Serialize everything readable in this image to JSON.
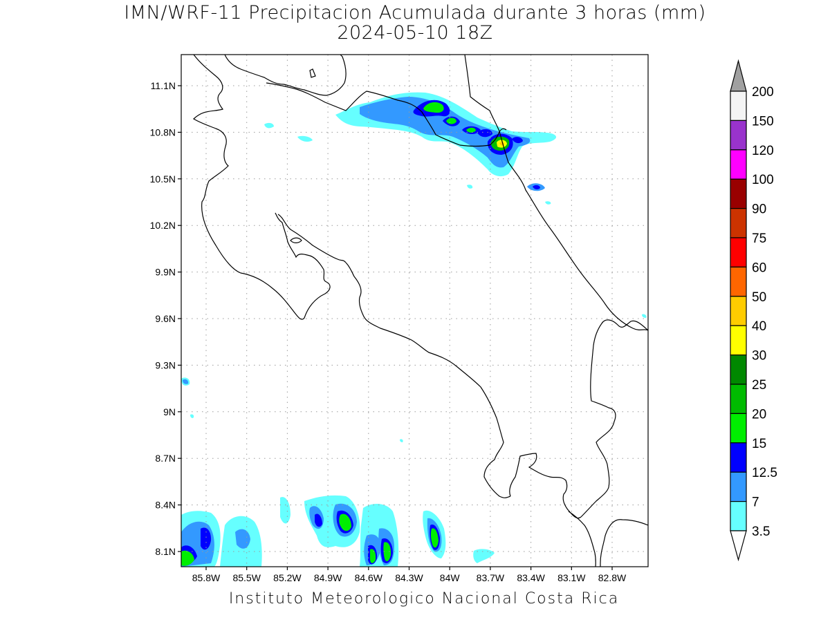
{
  "title": {
    "line1": "IMN/WRF-11 Precipitacion Acumulada durante 3 horas (mm)",
    "line2": "2024-05-10 18Z"
  },
  "footer": "Instituto Meteorologico Nacional Costa Rica",
  "axes": {
    "lat_ticks": [
      "11.1N",
      "10.8N",
      "10.5N",
      "10.2N",
      "9.9N",
      "9.6N",
      "9.3N",
      "9N",
      "8.7N",
      "8.4N",
      "8.1N"
    ],
    "lon_ticks": [
      "85.8W",
      "85.5W",
      "85.2W",
      "84.9W",
      "84.6W",
      "84.3W",
      "84W",
      "83.7W",
      "83.4W",
      "83.1W",
      "82.8W"
    ],
    "grid": "dotted"
  },
  "colorbar": {
    "levels": [
      "200",
      "150",
      "120",
      "100",
      "90",
      "75",
      "60",
      "50",
      "40",
      "30",
      "25",
      "20",
      "15",
      "12.5",
      "7",
      "3.5"
    ],
    "colors": [
      "#f4f4f4",
      "#9933cc",
      "#ff00ff",
      "#990000",
      "#cc3300",
      "#ff0000",
      "#ff6600",
      "#ffcc00",
      "#ffff00",
      "#008800",
      "#00bb00",
      "#00ee00",
      "#0000ff",
      "#3399ff",
      "#66ffff"
    ],
    "over_color": "#a0a0a0",
    "under_color": "#ffffff"
  },
  "precip_cells": [
    {
      "lon": -84.15,
      "lat": 10.96,
      "peak": "25"
    },
    {
      "lon": -84.03,
      "lat": 10.87,
      "peak": "20"
    },
    {
      "lon": -83.62,
      "lat": 10.74,
      "peak": "40"
    },
    {
      "lon": -83.4,
      "lat": 10.44,
      "peak": "12.5"
    },
    {
      "lon": -85.85,
      "lat": 8.08,
      "peak": "20"
    },
    {
      "lon": -85.74,
      "lat": 8.16,
      "peak": "15"
    },
    {
      "lon": -84.83,
      "lat": 8.2,
      "peak": "20"
    },
    {
      "lon": -84.5,
      "lat": 8.08,
      "peak": "20"
    },
    {
      "lon": -84.1,
      "lat": 8.15,
      "peak": "25"
    }
  ]
}
